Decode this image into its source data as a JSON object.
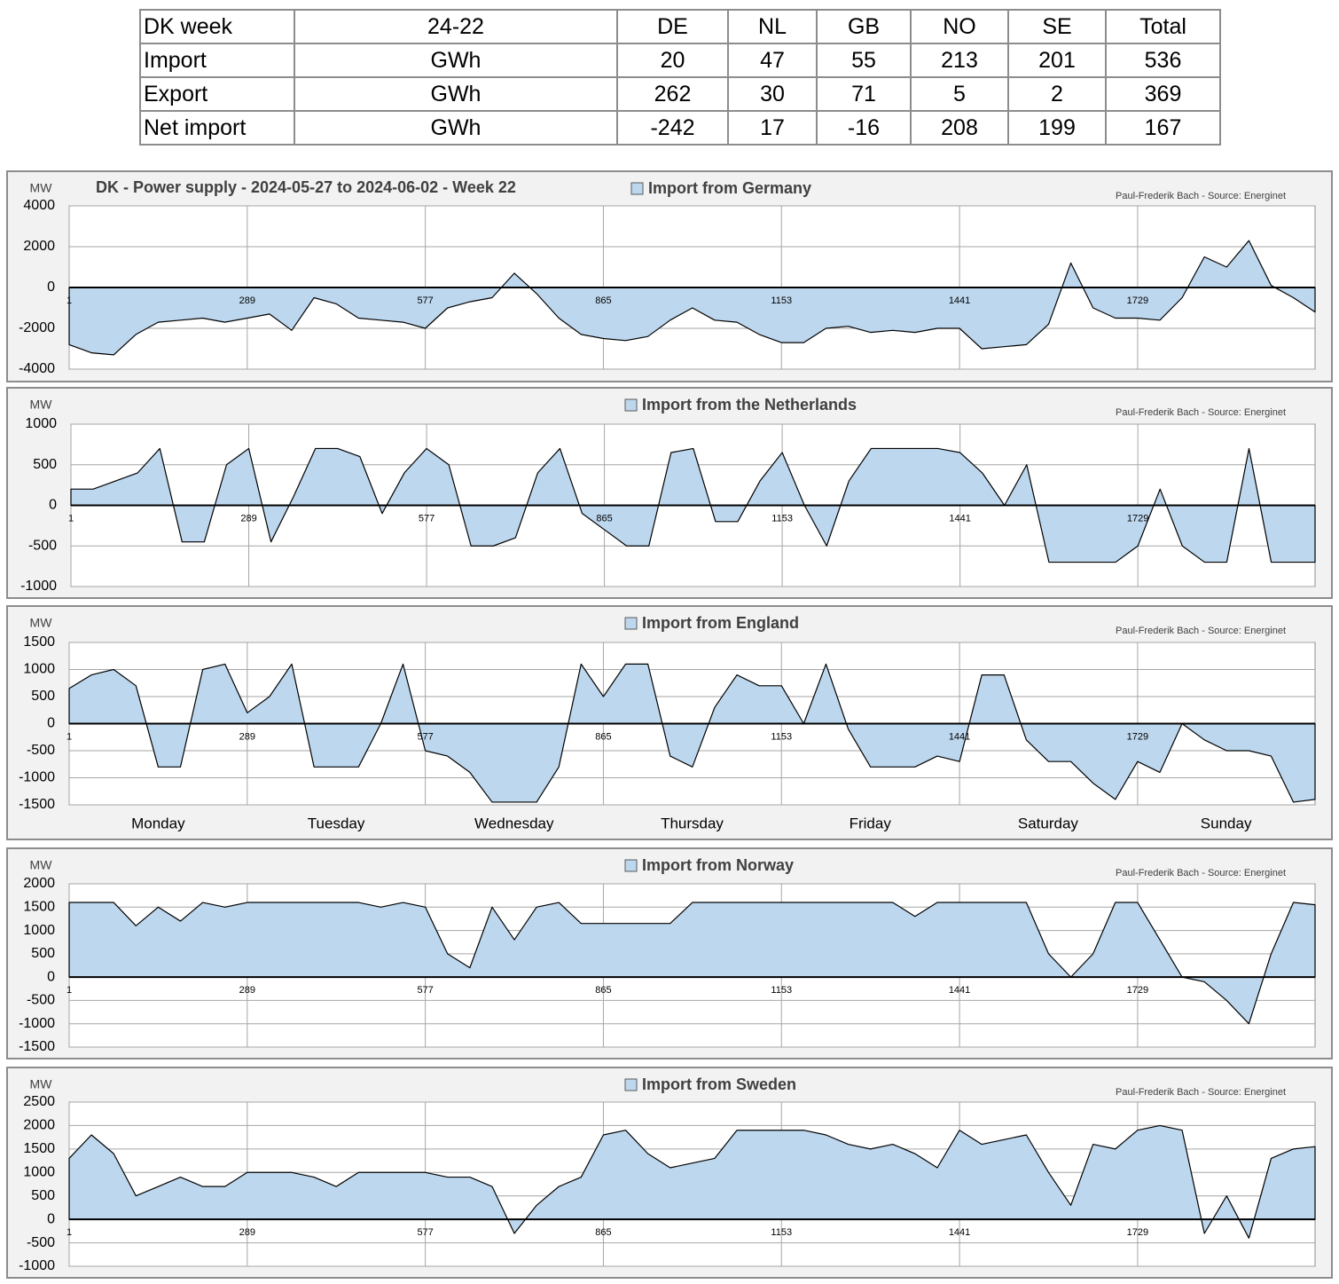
{
  "table": {
    "header": [
      "DK week",
      "24-22",
      "DE",
      "NL",
      "GB",
      "NO",
      "SE",
      "Total"
    ],
    "rows": [
      [
        "Import",
        "GWh",
        20,
        47,
        55,
        213,
        201,
        536
      ],
      [
        "Export",
        "GWh",
        262,
        30,
        71,
        5,
        2,
        369
      ],
      [
        "Net import",
        "GWh",
        -242,
        17,
        -16,
        208,
        199,
        167
      ]
    ]
  },
  "chart_data": [
    {
      "type": "area",
      "title": "DK - Power supply - 2024-05-27 to 2024-06-02 - Week 22",
      "credit": "Paul-Frederik Bach - Source: Energinet",
      "y_label": "MW",
      "x": [
        1,
        37,
        73,
        109,
        145,
        181,
        217,
        253,
        289,
        325,
        361,
        397,
        433,
        469,
        505,
        541,
        577,
        613,
        649,
        685,
        721,
        757,
        793,
        829,
        865,
        901,
        937,
        973,
        1009,
        1045,
        1081,
        1117,
        1153,
        1189,
        1225,
        1261,
        1297,
        1333,
        1369,
        1405,
        1441,
        1477,
        1513,
        1549,
        1585,
        1621,
        1657,
        1693,
        1729,
        1765,
        1801,
        1837,
        1873,
        1909,
        1945,
        1981,
        2016
      ],
      "series": [
        {
          "name": "Import from Germany",
          "color": "#bdd7ee",
          "values": [
            -2800,
            -3200,
            -3300,
            -2300,
            -1700,
            -1600,
            -1500,
            -1700,
            -1500,
            -1300,
            -2100,
            -500,
            -800,
            -1500,
            -1600,
            -1700,
            -2000,
            -1000,
            -700,
            -500,
            700,
            -300,
            -1500,
            -2300,
            -2500,
            -2600,
            -2400,
            -1600,
            -1000,
            -1600,
            -1700,
            -2300,
            -2700,
            -2700,
            -2000,
            -1900,
            -2200,
            -2100,
            -2200,
            -2000,
            -2000,
            -3000,
            -2900,
            -2800,
            -1800,
            1200,
            -1000,
            -1500,
            -1500,
            -1600,
            -500,
            1500,
            1000,
            2300,
            100,
            -500,
            -1200
          ]
        }
      ],
      "xlim": [
        1,
        2016
      ],
      "xticks": [
        1,
        289,
        577,
        865,
        1153,
        1441,
        1729
      ],
      "ylim": [
        -4000,
        4000
      ],
      "yticks": [
        -4000,
        -2000,
        0,
        2000,
        4000
      ],
      "grid": true
    },
    {
      "type": "area",
      "credit": "Paul-Frederik Bach - Source: Energinet",
      "y_label": "MW",
      "x": [
        1,
        37,
        73,
        109,
        145,
        181,
        217,
        253,
        289,
        325,
        361,
        397,
        433,
        469,
        505,
        541,
        577,
        613,
        649,
        685,
        721,
        757,
        793,
        829,
        865,
        901,
        937,
        973,
        1009,
        1045,
        1081,
        1117,
        1153,
        1189,
        1225,
        1261,
        1297,
        1333,
        1369,
        1405,
        1441,
        1477,
        1513,
        1549,
        1585,
        1621,
        1657,
        1693,
        1729,
        1765,
        1801,
        1837,
        1873,
        1909,
        1945,
        1981,
        2016
      ],
      "series": [
        {
          "name": "Import from the Netherlands",
          "color": "#bdd7ee",
          "values": [
            200,
            200,
            300,
            400,
            700,
            -450,
            -450,
            500,
            700,
            -450,
            100,
            700,
            700,
            600,
            -100,
            400,
            700,
            500,
            -500,
            -500,
            -400,
            400,
            700,
            -100,
            -300,
            -500,
            -500,
            650,
            700,
            -200,
            -200,
            300,
            650,
            0,
            -500,
            300,
            700,
            700,
            700,
            700,
            650,
            400,
            0,
            500,
            -700,
            -700,
            -700,
            -700,
            -500,
            200,
            -500,
            -700,
            -700,
            700,
            -700,
            -700,
            -700
          ]
        }
      ],
      "xlim": [
        1,
        2016
      ],
      "xticks": [
        1,
        289,
        577,
        865,
        1153,
        1441,
        1729
      ],
      "ylim": [
        -1000,
        1000
      ],
      "yticks": [
        -1000,
        -500,
        0,
        500,
        1000
      ],
      "grid": true
    },
    {
      "type": "area",
      "credit": "Paul-Frederik Bach - Source: Energinet",
      "y_label": "MW",
      "x": [
        1,
        37,
        73,
        109,
        145,
        181,
        217,
        253,
        289,
        325,
        361,
        397,
        433,
        469,
        505,
        541,
        577,
        613,
        649,
        685,
        721,
        757,
        793,
        829,
        865,
        901,
        937,
        973,
        1009,
        1045,
        1081,
        1117,
        1153,
        1189,
        1225,
        1261,
        1297,
        1333,
        1369,
        1405,
        1441,
        1477,
        1513,
        1549,
        1585,
        1621,
        1657,
        1693,
        1729,
        1765,
        1801,
        1837,
        1873,
        1909,
        1945,
        1981,
        2016
      ],
      "series": [
        {
          "name": "Import from England",
          "color": "#bdd7ee",
          "values": [
            650,
            900,
            1000,
            700,
            -800,
            -800,
            1000,
            1100,
            200,
            500,
            1100,
            -800,
            -800,
            -800,
            0,
            1100,
            -500,
            -600,
            -900,
            -1450,
            -1450,
            -1450,
            -800,
            1100,
            500,
            1100,
            1100,
            -600,
            -800,
            300,
            900,
            700,
            700,
            0,
            1100,
            -100,
            -800,
            -800,
            -800,
            -600,
            -700,
            900,
            900,
            -300,
            -700,
            -700,
            -1100,
            -1400,
            -700,
            -900,
            0,
            -300,
            -500,
            -500,
            -600,
            -1450,
            -1400
          ]
        }
      ],
      "day_labels": [
        "Monday",
        "Tuesday",
        "Wednesday",
        "Thursday",
        "Friday",
        "Saturday",
        "Sunday"
      ],
      "xlim": [
        1,
        2016
      ],
      "xticks": [
        1,
        289,
        577,
        865,
        1153,
        1441,
        1729
      ],
      "ylim": [
        -1500,
        1500
      ],
      "yticks": [
        -1500,
        -1000,
        -500,
        0,
        500,
        1000,
        1500
      ],
      "grid": true
    },
    {
      "type": "area",
      "credit": "Paul-Frederik Bach - Source: Energinet",
      "y_label": "MW",
      "x": [
        1,
        37,
        73,
        109,
        145,
        181,
        217,
        253,
        289,
        325,
        361,
        397,
        433,
        469,
        505,
        541,
        577,
        613,
        649,
        685,
        721,
        757,
        793,
        829,
        865,
        901,
        937,
        973,
        1009,
        1045,
        1081,
        1117,
        1153,
        1189,
        1225,
        1261,
        1297,
        1333,
        1369,
        1405,
        1441,
        1477,
        1513,
        1549,
        1585,
        1621,
        1657,
        1693,
        1729,
        1765,
        1801,
        1837,
        1873,
        1909,
        1945,
        1981,
        2016
      ],
      "series": [
        {
          "name": "Import from Norway",
          "color": "#bdd7ee",
          "values": [
            1600,
            1600,
            1600,
            1100,
            1500,
            1200,
            1600,
            1500,
            1600,
            1600,
            1600,
            1600,
            1600,
            1600,
            1500,
            1600,
            1500,
            500,
            200,
            1500,
            800,
            1500,
            1600,
            1150,
            1150,
            1150,
            1150,
            1150,
            1600,
            1600,
            1600,
            1600,
            1600,
            1600,
            1600,
            1600,
            1600,
            1600,
            1300,
            1600,
            1600,
            1600,
            1600,
            1600,
            500,
            0,
            500,
            1600,
            1600,
            800,
            0,
            -100,
            -500,
            -1000,
            500,
            1600,
            1550
          ]
        }
      ],
      "xlim": [
        1,
        2016
      ],
      "xticks": [
        1,
        289,
        577,
        865,
        1153,
        1441,
        1729
      ],
      "ylim": [
        -1500,
        2000
      ],
      "yticks": [
        -1500,
        -1000,
        -500,
        0,
        500,
        1000,
        1500,
        2000
      ],
      "grid": true
    },
    {
      "type": "area",
      "credit": "Paul-Frederik Bach - Source: Energinet",
      "y_label": "MW",
      "x": [
        1,
        37,
        73,
        109,
        145,
        181,
        217,
        253,
        289,
        325,
        361,
        397,
        433,
        469,
        505,
        541,
        577,
        613,
        649,
        685,
        721,
        757,
        793,
        829,
        865,
        901,
        937,
        973,
        1009,
        1045,
        1081,
        1117,
        1153,
        1189,
        1225,
        1261,
        1297,
        1333,
        1369,
        1405,
        1441,
        1477,
        1513,
        1549,
        1585,
        1621,
        1657,
        1693,
        1729,
        1765,
        1801,
        1837,
        1873,
        1909,
        1945,
        1981,
        2016
      ],
      "series": [
        {
          "name": "Import from Sweden",
          "color": "#bdd7ee",
          "values": [
            1300,
            1800,
            1400,
            500,
            700,
            900,
            700,
            700,
            1000,
            1000,
            1000,
            900,
            700,
            1000,
            1000,
            1000,
            1000,
            900,
            900,
            700,
            -300,
            300,
            700,
            900,
            1800,
            1900,
            1400,
            1100,
            1200,
            1300,
            1900,
            1900,
            1900,
            1900,
            1800,
            1600,
            1500,
            1600,
            1400,
            1100,
            1900,
            1600,
            1700,
            1800,
            1000,
            300,
            1600,
            1500,
            1900,
            2000,
            1900,
            -300,
            500,
            -400,
            1300,
            1500,
            1550
          ]
        }
      ],
      "xlim": [
        1,
        2016
      ],
      "xticks": [
        1,
        289,
        577,
        865,
        1153,
        1441,
        1729
      ],
      "ylim": [
        -1000,
        2500
      ],
      "yticks": [
        -1000,
        -500,
        0,
        500,
        1000,
        1500,
        2000,
        2500
      ],
      "grid": true
    }
  ]
}
